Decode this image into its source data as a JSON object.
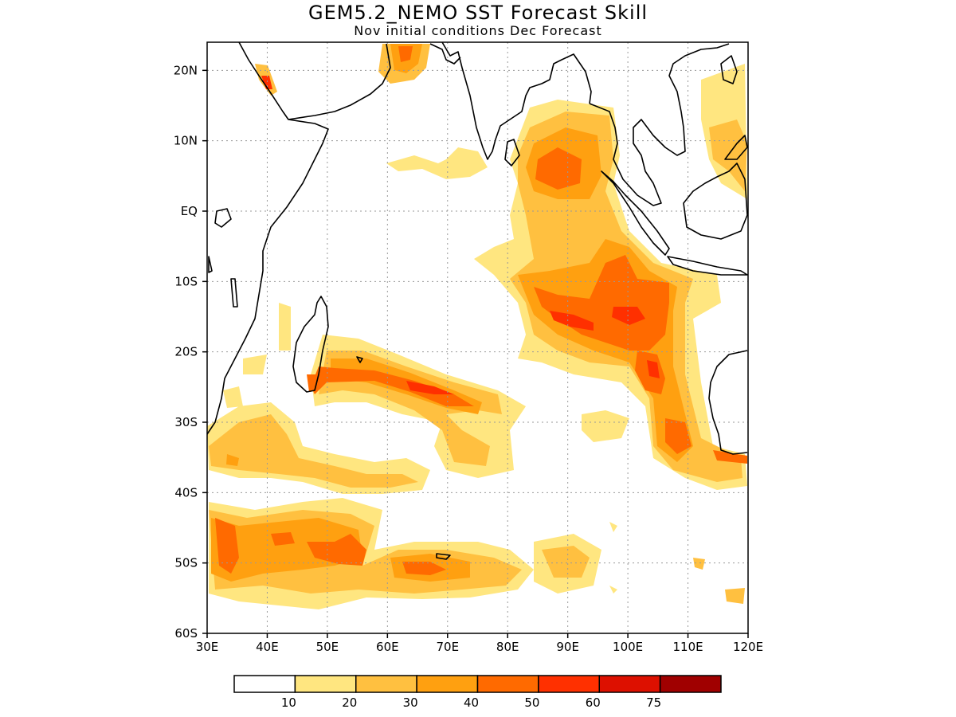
{
  "title": "GEM5.2_NEMO SST Forecast Skill",
  "subtitle": "Nov initial conditions  Dec Forecast",
  "map": {
    "lon_range": [
      30,
      120
    ],
    "lat_range": [
      -60,
      24
    ],
    "lat_ticks": [
      {
        "value": 20,
        "label": "20N"
      },
      {
        "value": 10,
        "label": "10N"
      },
      {
        "value": 0,
        "label": "EQ"
      },
      {
        "value": -10,
        "label": "10S"
      },
      {
        "value": -20,
        "label": "20S"
      },
      {
        "value": -30,
        "label": "30S"
      },
      {
        "value": -40,
        "label": "40S"
      },
      {
        "value": -50,
        "label": "50S"
      },
      {
        "value": -60,
        "label": "60S"
      }
    ],
    "lon_ticks": [
      {
        "value": 30,
        "label": "30E"
      },
      {
        "value": 40,
        "label": "40E"
      },
      {
        "value": 50,
        "label": "50E"
      },
      {
        "value": 60,
        "label": "60E"
      },
      {
        "value": 70,
        "label": "70E"
      },
      {
        "value": 80,
        "label": "80E"
      },
      {
        "value": 90,
        "label": "90E"
      },
      {
        "value": 100,
        "label": "100E"
      },
      {
        "value": 110,
        "label": "110E"
      },
      {
        "value": 120,
        "label": "120E"
      }
    ],
    "gridlines": true
  },
  "colorbar": {
    "colors": [
      "#ffffff",
      "#ffe680",
      "#ffc040",
      "#ffa010",
      "#ff6a00",
      "#ff3000",
      "#dd1000",
      "#a00000"
    ],
    "labels": [
      "10",
      "20",
      "30",
      "40",
      "50",
      "60",
      "75"
    ]
  }
}
